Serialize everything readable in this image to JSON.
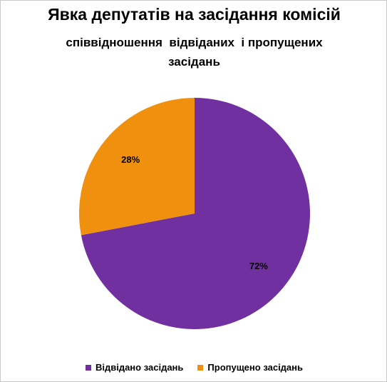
{
  "chart_data": {
    "type": "pie",
    "title": "Явка депутатів на засідання комісій",
    "subtitle": "співвідношення  відвіданих  і пропущених засідань",
    "slices": [
      {
        "name": "Відвідано засідань",
        "value": 72,
        "label": "72%",
        "color": "#7030a0"
      },
      {
        "name": "Пропущено засідань",
        "value": 28,
        "label": "28%",
        "color": "#f0900f"
      }
    ],
    "legend_position": "bottom",
    "start_angle": "12 o'clock",
    "direction": "clockwise"
  }
}
